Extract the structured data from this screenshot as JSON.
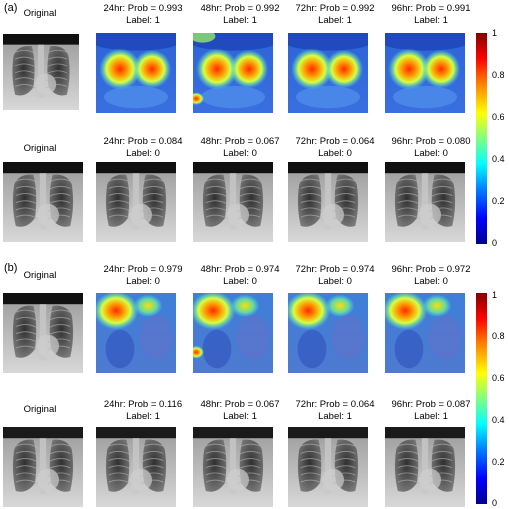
{
  "panels": [
    {
      "label": "(a)",
      "rows": [
        {
          "original_label": "Original",
          "cells": [
            {
              "caption": "24hr: Prob = 0.993",
              "label_text": "Label: 1",
              "kind": "heat",
              "variant": "a"
            },
            {
              "caption": "48hr: Prob = 0.992",
              "label_text": "Label: 1",
              "kind": "heat",
              "variant": "a2"
            },
            {
              "caption": "72hr: Prob = 0.992",
              "label_text": "Label: 1",
              "kind": "heat",
              "variant": "a"
            },
            {
              "caption": "96hr: Prob = 0.991",
              "label_text": "Label: 1",
              "kind": "heat",
              "variant": "a"
            }
          ]
        },
        {
          "original_label": "Original",
          "cells": [
            {
              "caption": "24hr: Prob = 0.084",
              "label_text": "Label: 0",
              "kind": "xray"
            },
            {
              "caption": "48hr: Prob = 0.067",
              "label_text": "Label: 0",
              "kind": "xray"
            },
            {
              "caption": "72hr: Prob = 0.064",
              "label_text": "Label: 0",
              "kind": "xray"
            },
            {
              "caption": "96hr: Prob = 0.080",
              "label_text": "Label: 0",
              "kind": "xray"
            }
          ]
        }
      ],
      "colorbar": {
        "ticks": [
          "1",
          "0.8",
          "0.6",
          "0.4",
          "0.2",
          "0"
        ]
      }
    },
    {
      "label": "(b)",
      "rows": [
        {
          "original_label": "Original",
          "cells": [
            {
              "caption": "24hr: Prob = 0.979",
              "label_text": "Label: 0",
              "kind": "heat",
              "variant": "b"
            },
            {
              "caption": "48hr: Prob = 0.974",
              "label_text": "Label: 0",
              "kind": "heat",
              "variant": "b2"
            },
            {
              "caption": "72hr: Prob = 0.974",
              "label_text": "Label: 0",
              "kind": "heat",
              "variant": "b"
            },
            {
              "caption": "96hr: Prob = 0.972",
              "label_text": "Label: 0",
              "kind": "heat",
              "variant": "b"
            }
          ]
        },
        {
          "original_label": "Original",
          "cells": [
            {
              "caption": "24hr: Prob = 0.116",
              "label_text": "Label: 1",
              "kind": "xray"
            },
            {
              "caption": "48hr: Prob = 0.067",
              "label_text": "Label: 1",
              "kind": "xray"
            },
            {
              "caption": "72hr: Prob = 0.064",
              "label_text": "Label: 1",
              "kind": "xray"
            },
            {
              "caption": "96hr: Prob = 0.087",
              "label_text": "Label: 1",
              "kind": "xray"
            }
          ]
        }
      ],
      "colorbar": {
        "ticks": [
          "1",
          "0.8",
          "0.6",
          "0.4",
          "0.2",
          "0"
        ]
      }
    }
  ]
}
